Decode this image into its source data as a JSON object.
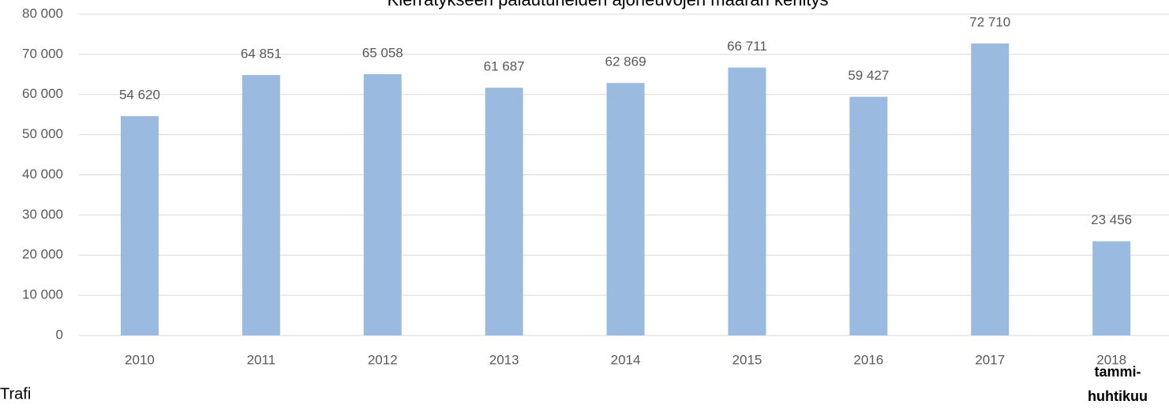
{
  "chart_data": {
    "type": "bar",
    "title": "Kierrätykseen palautuneiden ajoneuvojen määrän kehitys",
    "categories": [
      "2010",
      "2011",
      "2012",
      "2013",
      "2014",
      "2015",
      "2016",
      "2017",
      "2018"
    ],
    "values": [
      54620,
      64851,
      65058,
      61687,
      62869,
      66711,
      59427,
      72710,
      23456
    ],
    "value_labels": [
      "54 620",
      "64 851",
      "65 058",
      "61 687",
      "62 869",
      "66 711",
      "59 427",
      "72 710",
      "23 456"
    ],
    "color": "#9bbae0",
    "ylim": [
      0,
      80000
    ],
    "yticks": [
      0,
      {
        "value": 10000,
        "label": "10 000"
      },
      {
        "value": 20000,
        "label": "20 000"
      },
      {
        "value": 30000,
        "label": "30 000"
      },
      {
        "value": 40000,
        "label": "40 000"
      },
      {
        "value": 50000,
        "label": "50 000"
      },
      {
        "value": 60000,
        "label": "60 000"
      },
      {
        "value": 70000,
        "label": "70 000"
      },
      {
        "value": 80000,
        "label": "80 000"
      }
    ],
    "grid": true,
    "annotation": [
      "tammi-",
      "huhtikuu"
    ],
    "source": "Trafi"
  }
}
